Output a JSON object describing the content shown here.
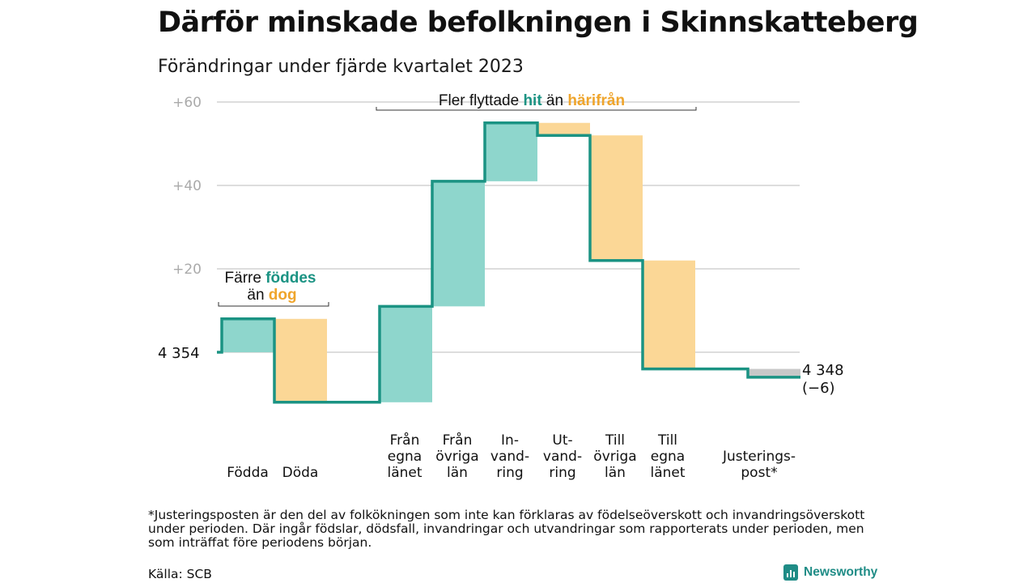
{
  "title": "Därför minskade befolkningen i Skinnskatteberg",
  "subtitle": "Förändringar under fjärde kvartalet 2023",
  "colors": {
    "increase": "#8ed6cc",
    "decrease": "#fbd796",
    "adjustment": "#c8c8c8",
    "line": "#1b9383",
    "teal_text": "#1b9383",
    "orange_text": "#efa52c",
    "grid": "#dddddd",
    "tick": "#aaaaaa"
  },
  "chart_data": {
    "type": "waterfall",
    "start_value": 4354,
    "start_label": "4 354",
    "end_label_value": "4 348",
    "end_label_change": "(−6)",
    "y_ticks": [
      {
        "value": 20,
        "label": "+20"
      },
      {
        "value": 40,
        "label": "+40"
      },
      {
        "value": 60,
        "label": "+60"
      }
    ],
    "ylim": [
      -15,
      62
    ],
    "steps": [
      {
        "label": [
          "",
          "",
          "Födda"
        ],
        "change": 8,
        "kind": "increase"
      },
      {
        "label": [
          "",
          "",
          "Döda"
        ],
        "change": -20,
        "kind": "decrease"
      },
      {
        "label": [
          "Från",
          "egna",
          "länet"
        ],
        "change": 23,
        "kind": "increase"
      },
      {
        "label": [
          "Från",
          "övriga",
          "län"
        ],
        "change": 30,
        "kind": "increase"
      },
      {
        "label": [
          "In-",
          "vand-",
          "ring"
        ],
        "change": 14,
        "kind": "increase"
      },
      {
        "label": [
          "Ut-",
          "vand-",
          "ring"
        ],
        "change": -3,
        "kind": "decrease"
      },
      {
        "label": [
          "Till",
          "övriga",
          "län"
        ],
        "change": -30,
        "kind": "decrease"
      },
      {
        "label": [
          "Till",
          "egna",
          "länet"
        ],
        "change": -26,
        "kind": "decrease"
      },
      {
        "label": [
          "",
          "Justerings-",
          "post*"
        ],
        "change": -2,
        "kind": "adjustment"
      }
    ],
    "annotations": [
      {
        "segments": [
          {
            "text": "Färre ",
            "color": "dark"
          },
          {
            "text": "föddes",
            "color": "teal"
          }
        ],
        "segments2": [
          {
            "text": "än ",
            "color": "dark"
          },
          {
            "text": "dog",
            "color": "orange"
          }
        ]
      },
      {
        "segments": [
          {
            "text": "Fler flyttade ",
            "color": "dark"
          },
          {
            "text": "hit",
            "color": "teal"
          },
          {
            "text": "  än ",
            "color": "dark"
          },
          {
            "text": "härifrån",
            "color": "orange"
          }
        ]
      }
    ]
  },
  "footnote": "*Justeringsposten är den del av folkökningen som inte kan förklaras av födelseöverskott och invandringsöverskott under perioden. Där ingår födslar, dödsfall, invandringar och utvandringar som rapporterats under perioden, men som inträffat före periodens början.",
  "source": "Källa: SCB",
  "brand": "Newsworthy"
}
